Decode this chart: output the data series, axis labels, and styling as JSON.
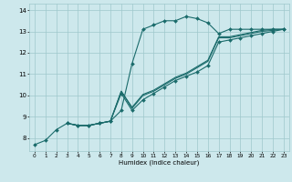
{
  "title": "",
  "xlabel": "Humidex (Indice chaleur)",
  "bg_color": "#cde8ec",
  "grid_color": "#9fc8cc",
  "line_color": "#1a6b6b",
  "xlim": [
    -0.5,
    23.5
  ],
  "ylim": [
    7.4,
    14.3
  ],
  "xticks": [
    0,
    1,
    2,
    3,
    4,
    5,
    6,
    7,
    8,
    9,
    10,
    11,
    12,
    13,
    14,
    15,
    16,
    17,
    18,
    19,
    20,
    21,
    22,
    23
  ],
  "yticks": [
    8,
    9,
    10,
    11,
    12,
    13,
    14
  ],
  "curve_x": [
    0,
    1,
    2,
    3,
    4,
    5,
    6,
    7,
    8,
    9,
    10,
    11,
    12,
    13,
    14,
    15,
    16,
    17,
    18,
    19,
    20,
    21,
    22,
    23
  ],
  "curve_y": [
    7.7,
    7.9,
    8.4,
    8.7,
    8.6,
    8.6,
    8.7,
    8.8,
    9.3,
    11.5,
    13.1,
    13.3,
    13.5,
    13.5,
    13.7,
    13.6,
    13.4,
    12.9,
    13.1,
    13.1,
    13.1,
    13.1,
    13.1,
    13.1
  ],
  "line2_x": [
    3,
    4,
    5,
    6,
    7,
    8,
    9,
    10,
    11,
    12,
    13,
    14,
    15,
    16,
    17,
    18,
    19,
    20,
    21,
    22,
    23
  ],
  "line2_y": [
    8.7,
    8.6,
    8.6,
    8.7,
    8.8,
    10.1,
    9.3,
    9.8,
    10.1,
    10.4,
    10.7,
    10.9,
    11.1,
    11.4,
    12.5,
    12.6,
    12.7,
    12.8,
    12.9,
    13.0,
    13.1
  ],
  "line3_x": [
    3,
    4,
    5,
    6,
    7,
    8,
    9,
    10,
    11,
    12,
    13,
    14,
    15,
    16,
    17,
    18,
    19,
    20,
    21,
    22,
    23
  ],
  "line3_y": [
    8.7,
    8.6,
    8.6,
    8.7,
    8.8,
    10.2,
    9.4,
    10.0,
    10.2,
    10.5,
    10.8,
    11.0,
    11.3,
    11.6,
    12.7,
    12.7,
    12.8,
    12.9,
    13.0,
    13.05,
    13.1
  ],
  "line4_x": [
    3,
    4,
    5,
    6,
    7,
    8,
    9,
    10,
    11,
    12,
    13,
    14,
    15,
    16,
    17,
    18,
    19,
    20,
    21,
    22,
    23
  ],
  "line4_y": [
    8.7,
    8.6,
    8.6,
    8.7,
    8.8,
    10.2,
    9.45,
    10.05,
    10.25,
    10.55,
    10.85,
    11.05,
    11.35,
    11.65,
    12.75,
    12.75,
    12.85,
    12.95,
    13.05,
    13.1,
    13.1
  ]
}
